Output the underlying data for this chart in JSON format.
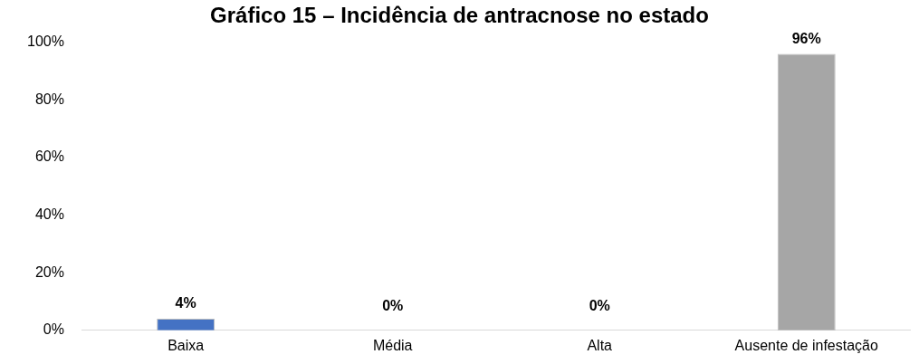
{
  "chart_data": {
    "type": "bar",
    "title": "Gráfico 15 – Incidência de antracnose no estado",
    "categories": [
      "Baixa",
      "Média",
      "Alta",
      "Ausente de infestação"
    ],
    "values": [
      4,
      0,
      0,
      96
    ],
    "colors": [
      "#4472c4",
      "#ffc000",
      "#a5a5a5",
      "#a6a6a6"
    ],
    "value_labels": [
      "4%",
      "0%",
      "0%",
      "96%"
    ],
    "ylim": [
      0,
      100
    ],
    "yticks": [
      {
        "value": 0,
        "label": "0%"
      },
      {
        "value": 20,
        "label": "20%"
      },
      {
        "value": 40,
        "label": "40%"
      },
      {
        "value": 60,
        "label": "60%"
      },
      {
        "value": 80,
        "label": "80%"
      },
      {
        "value": 100,
        "label": "100%"
      }
    ],
    "grid": false,
    "legend": false
  }
}
